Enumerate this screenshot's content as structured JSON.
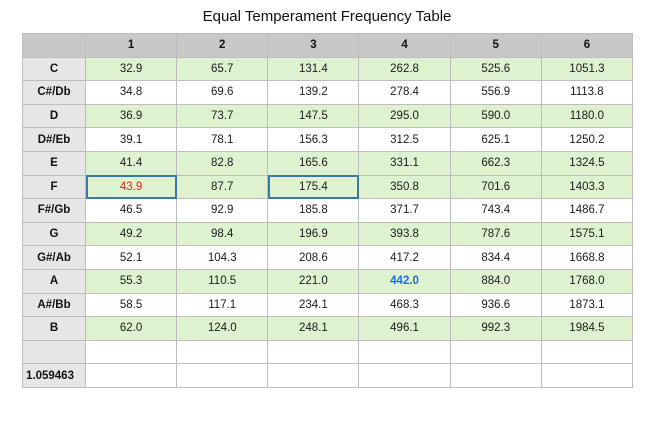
{
  "title": "Equal Temperament Frequency Table",
  "columns": [
    "",
    "1",
    "2",
    "3",
    "4",
    "5",
    "6"
  ],
  "rows": [
    {
      "note": "C",
      "shaded": true,
      "values": [
        "32.9",
        "65.7",
        "131.4",
        "262.8",
        "525.6",
        "1051.3"
      ]
    },
    {
      "note": "C#/Db",
      "shaded": false,
      "values": [
        "34.8",
        "69.6",
        "139.2",
        "278.4",
        "556.9",
        "1113.8"
      ]
    },
    {
      "note": "D",
      "shaded": true,
      "values": [
        "36.9",
        "73.7",
        "147.5",
        "295.0",
        "590.0",
        "1180.0"
      ]
    },
    {
      "note": "D#/Eb",
      "shaded": false,
      "values": [
        "39.1",
        "78.1",
        "156.3",
        "312.5",
        "625.1",
        "1250.2"
      ]
    },
    {
      "note": "E",
      "shaded": true,
      "values": [
        "41.4",
        "82.8",
        "165.6",
        "331.1",
        "662.3",
        "1324.5"
      ]
    },
    {
      "note": "F",
      "shaded": true,
      "values": [
        "43.9",
        "87.7",
        "175.4",
        "350.8",
        "701.6",
        "1403.3"
      ]
    },
    {
      "note": "F#/Gb",
      "shaded": false,
      "values": [
        "46.5",
        "92.9",
        "185.8",
        "371.7",
        "743.4",
        "1486.7"
      ]
    },
    {
      "note": "G",
      "shaded": true,
      "values": [
        "49.2",
        "98.4",
        "196.9",
        "393.8",
        "787.6",
        "1575.1"
      ]
    },
    {
      "note": "G#/Ab",
      "shaded": false,
      "values": [
        "52.1",
        "104.3",
        "208.6",
        "417.2",
        "834.4",
        "1668.8"
      ]
    },
    {
      "note": "A",
      "shaded": true,
      "values": [
        "55.3",
        "110.5",
        "221.0",
        "442.0",
        "884.0",
        "1768.0"
      ]
    },
    {
      "note": "A#/Bb",
      "shaded": false,
      "values": [
        "58.5",
        "117.1",
        "234.1",
        "468.3",
        "936.6",
        "1873.1"
      ]
    },
    {
      "note": "B",
      "shaded": true,
      "values": [
        "62.0",
        "124.0",
        "248.1",
        "496.1",
        "992.3",
        "1984.5"
      ]
    },
    {
      "note": "",
      "shaded": false,
      "values": [
        "",
        "",
        "",
        "",
        "",
        ""
      ]
    },
    {
      "note": "1.059463",
      "shaded": false,
      "values": [
        "",
        "",
        "",
        "",
        "",
        ""
      ]
    }
  ],
  "highlights": {
    "selected_cells": [
      [
        5,
        0
      ],
      [
        5,
        2
      ]
    ],
    "red_text_cell": [
      5,
      0
    ],
    "blue_text_cell": [
      9,
      3
    ]
  },
  "colors": {
    "header_bg": "#c8c8c8",
    "row_header_bg": "#e6e6e6",
    "shaded_row_bg": "#dff2d0",
    "selection_border": "#3a78a8",
    "red_text": "#d9261c",
    "blue_text": "#1d6ae5"
  }
}
